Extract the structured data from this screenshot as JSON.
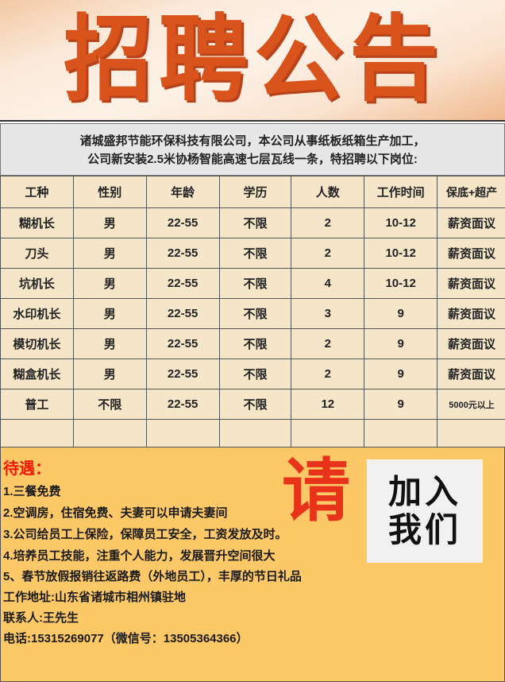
{
  "banner": {
    "title": "招聘公告"
  },
  "intro": {
    "line1": "诸城盛邦节能环保科技有限公司，本公司从事纸板纸箱生产加工，",
    "line2": "公司新安装2.5米协杨智能高速七层瓦线一条，特招聘以下岗位:"
  },
  "table": {
    "headers": [
      "工种",
      "性别",
      "年龄",
      "学历",
      "人数",
      "工作时间",
      "保底+超产"
    ],
    "rows": [
      [
        "糊机长",
        "男",
        "22-55",
        "不限",
        "2",
        "10-12",
        "薪资面议"
      ],
      [
        "刀头",
        "男",
        "22-55",
        "不限",
        "2",
        "10-12",
        "薪资面议"
      ],
      [
        "坑机长",
        "男",
        "22-55",
        "不限",
        "4",
        "10-12",
        "薪资面议"
      ],
      [
        "水印机长",
        "男",
        "22-55",
        "不限",
        "3",
        "9",
        "薪资面议"
      ],
      [
        "模切机长",
        "男",
        "22-55",
        "不限",
        "2",
        "9",
        "薪资面议"
      ],
      [
        "糊盒机长",
        "男",
        "22-55",
        "不限",
        "2",
        "9",
        "薪资面议"
      ],
      [
        "普工",
        "不限",
        "22-55",
        "不限",
        "12",
        "9",
        "5000元以上"
      ]
    ]
  },
  "benefits": {
    "heading": "待遇：",
    "items": [
      "1.三餐免费",
      "2.空调房，住宿免费、夫妻可以申请夫妻间",
      "3.公司给员工上保险，保障员工安全，工资发放及时。",
      "4.培养员工技能，注重个人能力，发展晋升空间很大",
      "5、春节放假报销往返路费（外地员工），丰厚的节日礼品"
    ],
    "address": "工作地址:山东省诸城市相州镇驻地",
    "contact": "联系人:王先生",
    "phone": "电话:15315269077（微信号：13505364366）"
  },
  "decor": {
    "please": "请",
    "join_line1": "加入",
    "join_line2": "我们"
  }
}
